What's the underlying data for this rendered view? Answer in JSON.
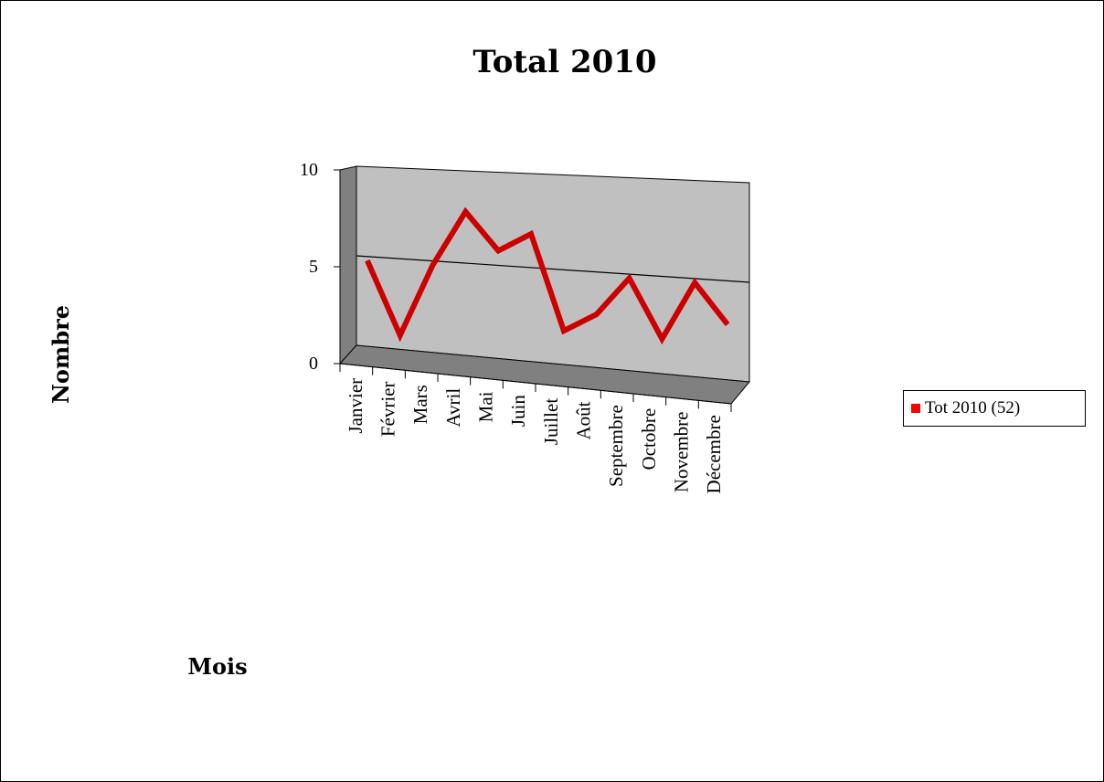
{
  "chart_data": {
    "type": "line",
    "title": "Total 2010",
    "xlabel": "Mois",
    "ylabel": "Nombre",
    "categories": [
      "Janvier",
      "Février",
      "Mars",
      "Avril",
      "Mai",
      "Juin",
      "Juillet",
      "Août",
      "Septembre",
      "Octobre",
      "Novembre",
      "Décembre"
    ],
    "series": [
      {
        "name": "Tot 2010 (52)",
        "values": [
          5,
          1,
          5,
          8,
          6,
          7,
          2,
          3,
          5,
          2,
          5,
          3
        ],
        "color": "#cc0000"
      }
    ],
    "ylim": [
      0,
      10
    ],
    "yticks": [
      "0",
      "5",
      "10"
    ],
    "grid": true,
    "legend_position": "right",
    "colors": {
      "plot_wall": "#c0c0c0",
      "side_wall": "#808080",
      "floor": "#808080",
      "legend_swatch": "#ff0000"
    }
  }
}
